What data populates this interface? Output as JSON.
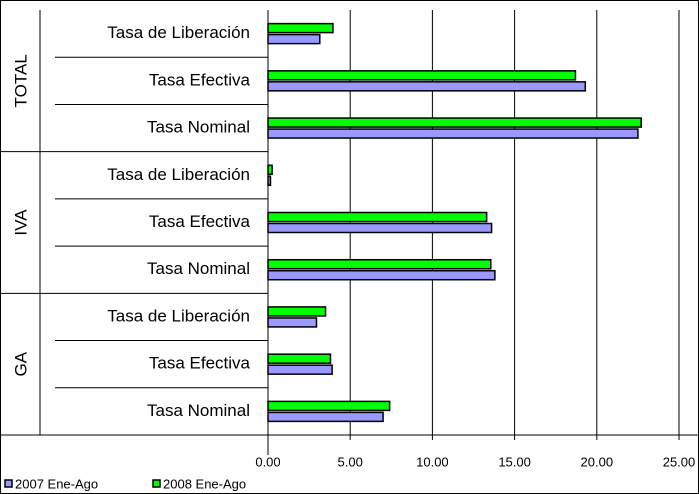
{
  "chart_data": {
    "type": "hbar",
    "groups": [
      "TOTAL",
      "IVA",
      "GA"
    ],
    "categories": [
      "Tasa de Liberación",
      "Tasa Efectiva",
      "Tasa Nominal",
      "Tasa de Liberación",
      "Tasa Efectiva",
      "Tasa Nominal",
      "Tasa de Liberación",
      "Tasa Efectiva",
      "Tasa Nominal"
    ],
    "series": [
      {
        "name": "2007 Ene-Ago",
        "color": "#9999ff",
        "values": [
          3.15,
          19.3,
          22.5,
          0.15,
          13.6,
          13.8,
          2.95,
          3.9,
          7.0
        ]
      },
      {
        "name": "2008 Ene-Ago",
        "color": "#00ff00",
        "values": [
          3.95,
          18.7,
          22.7,
          0.25,
          13.3,
          13.55,
          3.5,
          3.8,
          7.4
        ]
      }
    ],
    "xlim": [
      0,
      25
    ],
    "xticks": [
      {
        "value": 0,
        "label": "0.00"
      },
      {
        "value": 5,
        "label": "5.00"
      },
      {
        "value": 10,
        "label": "10.00"
      },
      {
        "value": 15,
        "label": "15.00"
      },
      {
        "value": 20,
        "label": "20.00"
      },
      {
        "value": 25,
        "label": "25.00"
      }
    ],
    "grid": true
  }
}
